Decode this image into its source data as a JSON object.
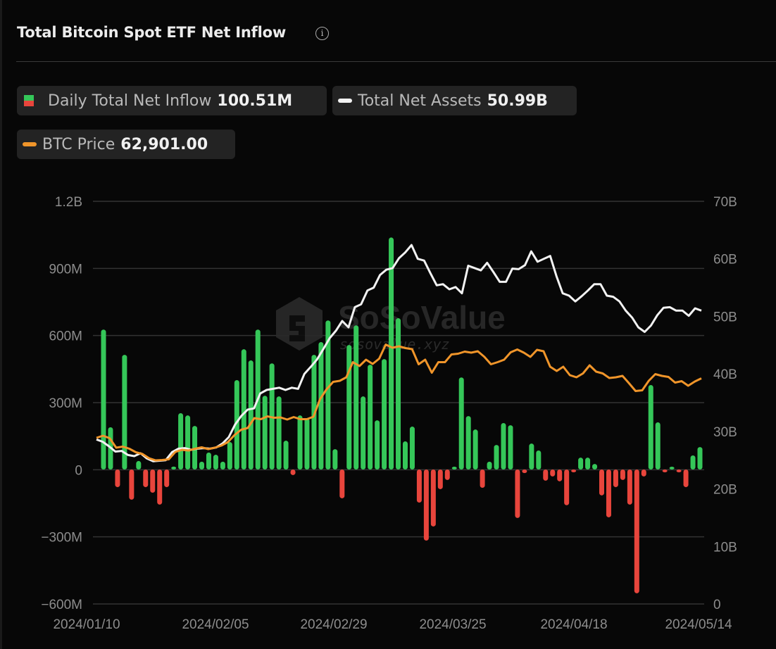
{
  "header": {
    "title": "Total Bitcoin Spot ETF Net Inflow",
    "info_icon": "info-icon"
  },
  "legend": {
    "inflow": {
      "label": "Daily Total Net Inflow",
      "value": "100.51M",
      "up_color": "#35c759",
      "down_color": "#e8453c"
    },
    "assets": {
      "label": "Total Net Assets",
      "value": "50.99B",
      "color": "#f2f2f2"
    },
    "price": {
      "label": "BTC Price",
      "value": "62,901.00",
      "color": "#f0952a"
    }
  },
  "watermark": {
    "name": "SoSoValue",
    "url": "sosovalue.xyz"
  },
  "chart_data": {
    "type": "bar",
    "title": "Total Bitcoin Spot ETF Net Inflow",
    "x_tick_labels": [
      "2024/01/10",
      "2024/02/05",
      "2024/02/29",
      "2024/03/25",
      "2024/04/18",
      "2024/05/14"
    ],
    "y_left": {
      "label": "Daily Total Net Inflow",
      "ticks": [
        "1.2B",
        "900M",
        "600M",
        "300M",
        "0",
        "−300M",
        "−600M"
      ],
      "range_millions": [
        -600,
        1200
      ]
    },
    "y_right": {
      "label": "Total Net Assets",
      "ticks": [
        "70B",
        "60B",
        "50B",
        "40B",
        "30B",
        "20B",
        "10B",
        "0"
      ],
      "range_billions": [
        0,
        70
      ]
    },
    "grid": true,
    "legend_position": "top",
    "series": [
      {
        "name": "Daily Total Net Inflow (M USD)",
        "type": "bar",
        "values": [
          626,
          189,
          -79,
          513,
          -135,
          38,
          -79,
          -104,
          -157,
          -79,
          13,
          252,
          242,
          195,
          35,
          76,
          66,
          35,
          123,
          400,
          538,
          488,
          626,
          330,
          475,
          327,
          129,
          -25,
          242,
          230,
          513,
          570,
          667,
          91,
          -129,
          557,
          645,
          327,
          469,
          220,
          494,
          1038,
          677,
          126,
          192,
          -148,
          -318,
          -255,
          -88,
          -47,
          9,
          412,
          239,
          179,
          -82,
          35,
          110,
          208,
          198,
          -217,
          -16,
          116,
          85,
          -50,
          -31,
          -53,
          -160,
          -3,
          53,
          53,
          25,
          -116,
          -214,
          -79,
          -47,
          -157,
          -554,
          -31,
          378,
          211,
          -12,
          9,
          -9,
          -79,
          63,
          100.51
        ]
      },
      {
        "name": "Total Net Assets (B USD)",
        "type": "line",
        "values": [
          28.6,
          28.2,
          27.4,
          26.5,
          26.6,
          25.9,
          25.7,
          26.2,
          25.3,
          24.8,
          24.9,
          25.0,
          26.4,
          27.0,
          27.1,
          26.8,
          27.0,
          27.1,
          27.0,
          27.2,
          27.9,
          29.0,
          31.2,
          32.7,
          33.8,
          34.0,
          36.6,
          37.2,
          37.4,
          37.6,
          37.2,
          37.6,
          37.4,
          40.0,
          41.2,
          42.5,
          44.3,
          46.2,
          47.5,
          49.2,
          48.1,
          51.6,
          52.1,
          54.5,
          55.0,
          57.2,
          58.1,
          58.4,
          60.1,
          61.1,
          62.4,
          60.0,
          59.7,
          57.5,
          55.4,
          55.6,
          54.7,
          55.1,
          54.0,
          58.8,
          58.4,
          58.0,
          59.3,
          57.7,
          56.0,
          56.0,
          58.3,
          58.2,
          58.9,
          61.3,
          59.5,
          60.0,
          60.5,
          57.0,
          54.0,
          53.6,
          52.6,
          53.5,
          54.5,
          55.6,
          55.6,
          53.6,
          53.4,
          52.6,
          51.0,
          49.8,
          48.1,
          47.3,
          48.4,
          50.2,
          51.5,
          51.6,
          51.0,
          51.0,
          50.1,
          51.4,
          50.99
        ]
      },
      {
        "name": "BTC Price (USD)",
        "type": "line",
        "values": [
          46000,
          46600,
          45900,
          43200,
          43500,
          42900,
          41900,
          41400,
          40200,
          39600,
          39700,
          39900,
          42000,
          42600,
          42400,
          42900,
          43300,
          42800,
          43200,
          43800,
          44800,
          46800,
          48300,
          48800,
          51600,
          51300,
          52100,
          51700,
          51800,
          51200,
          51900,
          51300,
          51300,
          52000,
          57000,
          59800,
          61900,
          62200,
          63200,
          67500,
          66400,
          68200,
          67000,
          68500,
          72500,
          71600,
          72000,
          71500,
          71200,
          66900,
          68200,
          64500,
          67500,
          67500,
          69700,
          69900,
          70500,
          70200,
          70600,
          69000,
          66900,
          67500,
          68200,
          70300,
          71100,
          70200,
          69000,
          71000,
          70600,
          66200,
          65000,
          66200,
          63800,
          63200,
          64300,
          66600,
          64800,
          64300,
          63000,
          63200,
          63600,
          61500,
          59300,
          59500,
          62200,
          64100,
          63600,
          63300,
          61700,
          62100,
          60800,
          62000,
          62900
        ]
      }
    ]
  }
}
